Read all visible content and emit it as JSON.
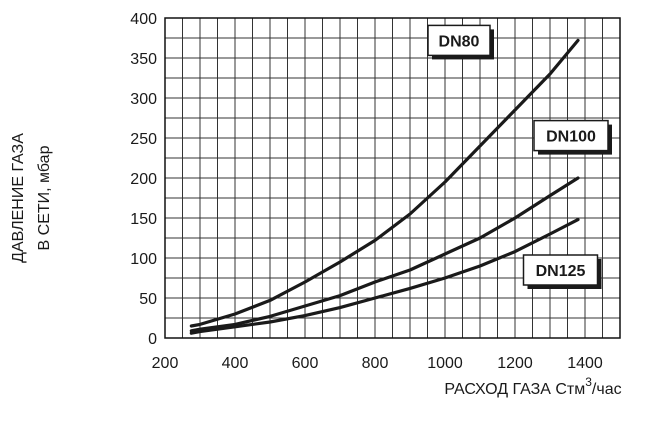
{
  "chart_data": {
    "type": "line",
    "title": "",
    "xlabel_main": "РАСХОД ГАЗА Стм",
    "xlabel_sup": "3",
    "xlabel_tail": "/час",
    "ylabel_line1": "ДАВЛЕНИЕ ГАЗА",
    "ylabel_line2": "В СЕТИ, мбар",
    "xlim": [
      200,
      1500
    ],
    "ylim": [
      0,
      400
    ],
    "x_ticks": [
      "200",
      "400",
      "600",
      "800",
      "1000",
      "1200",
      "1400"
    ],
    "y_ticks": [
      "0",
      "50",
      "100",
      "150",
      "200",
      "250",
      "300",
      "350",
      "400"
    ],
    "grid": true,
    "series": [
      {
        "name": "DN80",
        "x": [
          275,
          300,
          400,
          500,
          600,
          700,
          800,
          900,
          1000,
          1100,
          1200,
          1300,
          1380
        ],
        "y": [
          15,
          17,
          30,
          47,
          70,
          95,
          122,
          155,
          195,
          240,
          285,
          330,
          372
        ]
      },
      {
        "name": "DN100",
        "x": [
          275,
          300,
          400,
          500,
          600,
          700,
          800,
          900,
          1000,
          1100,
          1200,
          1300,
          1380
        ],
        "y": [
          9,
          11,
          17,
          27,
          40,
          53,
          70,
          85,
          105,
          125,
          150,
          178,
          200
        ]
      },
      {
        "name": "DN125",
        "x": [
          275,
          300,
          400,
          500,
          600,
          700,
          800,
          900,
          1000,
          1100,
          1200,
          1300,
          1380
        ],
        "y": [
          6,
          8,
          14,
          20,
          28,
          38,
          50,
          62,
          75,
          90,
          108,
          130,
          148
        ]
      }
    ]
  }
}
